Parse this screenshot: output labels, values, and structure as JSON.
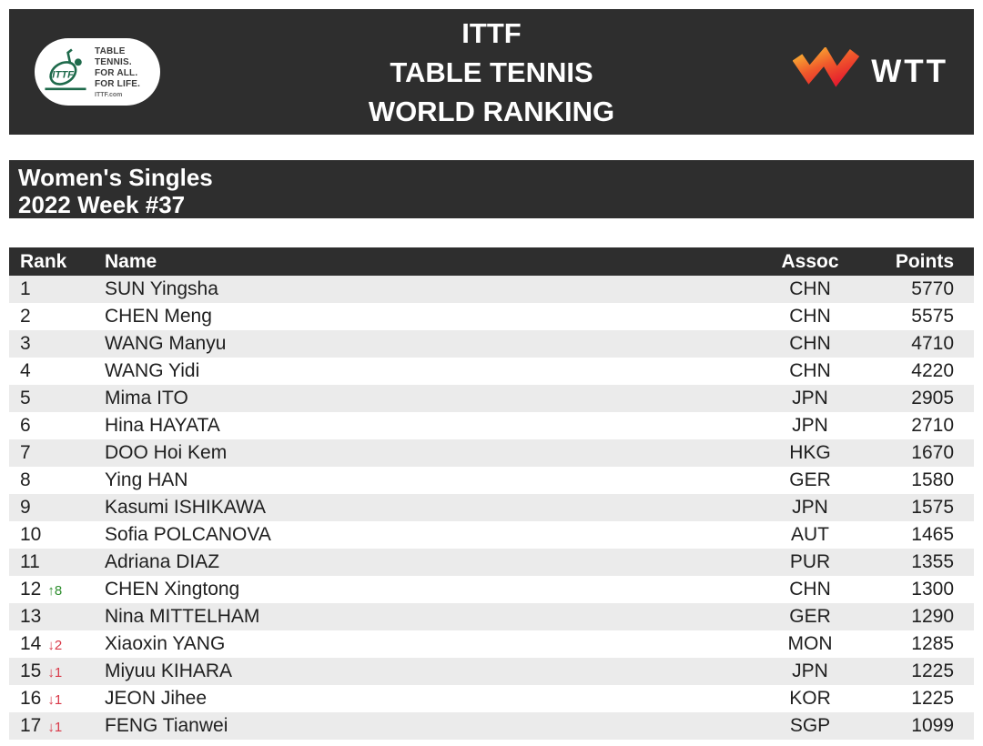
{
  "header": {
    "title_lines": [
      "ITTF",
      "TABLE TENNIS",
      "WORLD RANKING"
    ],
    "ittf_logo": {
      "lines": [
        "TABLE TENNIS.",
        "FOR ALL.",
        "FOR LIFE."
      ],
      "site": "ITTF.com",
      "emblem_icon": "ittf-racket-emblem"
    },
    "wtt_logo_text": "WTT"
  },
  "subtitle": {
    "line1": "Women's Singles",
    "line2": "2022 Week #37"
  },
  "table": {
    "columns": {
      "rank": "Rank",
      "name": "Name",
      "assoc": "Assoc",
      "points": "Points"
    },
    "glyphs": {
      "up": "↑",
      "down": "↓"
    },
    "rows": [
      {
        "rank": "1",
        "change": "",
        "dir": "",
        "name": "SUN Yingsha",
        "assoc": "CHN",
        "points": "5770"
      },
      {
        "rank": "2",
        "change": "",
        "dir": "",
        "name": "CHEN Meng",
        "assoc": "CHN",
        "points": "5575"
      },
      {
        "rank": "3",
        "change": "",
        "dir": "",
        "name": "WANG Manyu",
        "assoc": "CHN",
        "points": "4710"
      },
      {
        "rank": "4",
        "change": "",
        "dir": "",
        "name": "WANG Yidi",
        "assoc": "CHN",
        "points": "4220"
      },
      {
        "rank": "5",
        "change": "",
        "dir": "",
        "name": "Mima ITO",
        "assoc": "JPN",
        "points": "2905"
      },
      {
        "rank": "6",
        "change": "",
        "dir": "",
        "name": "Hina HAYATA",
        "assoc": "JPN",
        "points": "2710"
      },
      {
        "rank": "7",
        "change": "",
        "dir": "",
        "name": "DOO Hoi Kem",
        "assoc": "HKG",
        "points": "1670"
      },
      {
        "rank": "8",
        "change": "",
        "dir": "",
        "name": "Ying HAN",
        "assoc": "GER",
        "points": "1580"
      },
      {
        "rank": "9",
        "change": "",
        "dir": "",
        "name": "Kasumi ISHIKAWA",
        "assoc": "JPN",
        "points": "1575"
      },
      {
        "rank": "10",
        "change": "",
        "dir": "",
        "name": "Sofia POLCANOVA",
        "assoc": "AUT",
        "points": "1465"
      },
      {
        "rank": "11",
        "change": "",
        "dir": "",
        "name": "Adriana DIAZ",
        "assoc": "PUR",
        "points": "1355"
      },
      {
        "rank": "12",
        "change": "8",
        "dir": "up",
        "name": "CHEN Xingtong",
        "assoc": "CHN",
        "points": "1300"
      },
      {
        "rank": "13",
        "change": "",
        "dir": "",
        "name": "Nina MITTELHAM",
        "assoc": "GER",
        "points": "1290"
      },
      {
        "rank": "14",
        "change": "2",
        "dir": "down",
        "name": "Xiaoxin YANG",
        "assoc": "MON",
        "points": "1285"
      },
      {
        "rank": "15",
        "change": "1",
        "dir": "down",
        "name": "Miyuu KIHARA",
        "assoc": "JPN",
        "points": "1225"
      },
      {
        "rank": "16",
        "change": "1",
        "dir": "down",
        "name": "JEON Jihee",
        "assoc": "KOR",
        "points": "1225"
      },
      {
        "rank": "17",
        "change": "1",
        "dir": "down",
        "name": "FENG Tianwei",
        "assoc": "SGP",
        "points": "1099"
      }
    ]
  },
  "colors": {
    "bar": "#2e2e2e",
    "row_alt": "#ebebeb",
    "text": "#1f1f1f",
    "rank_up": "#2f8f2f",
    "rank_down": "#d93848",
    "ittf_green": "#1e6a4b",
    "wtt_orange": "#f9b233",
    "wtt_red": "#e51e2e"
  }
}
